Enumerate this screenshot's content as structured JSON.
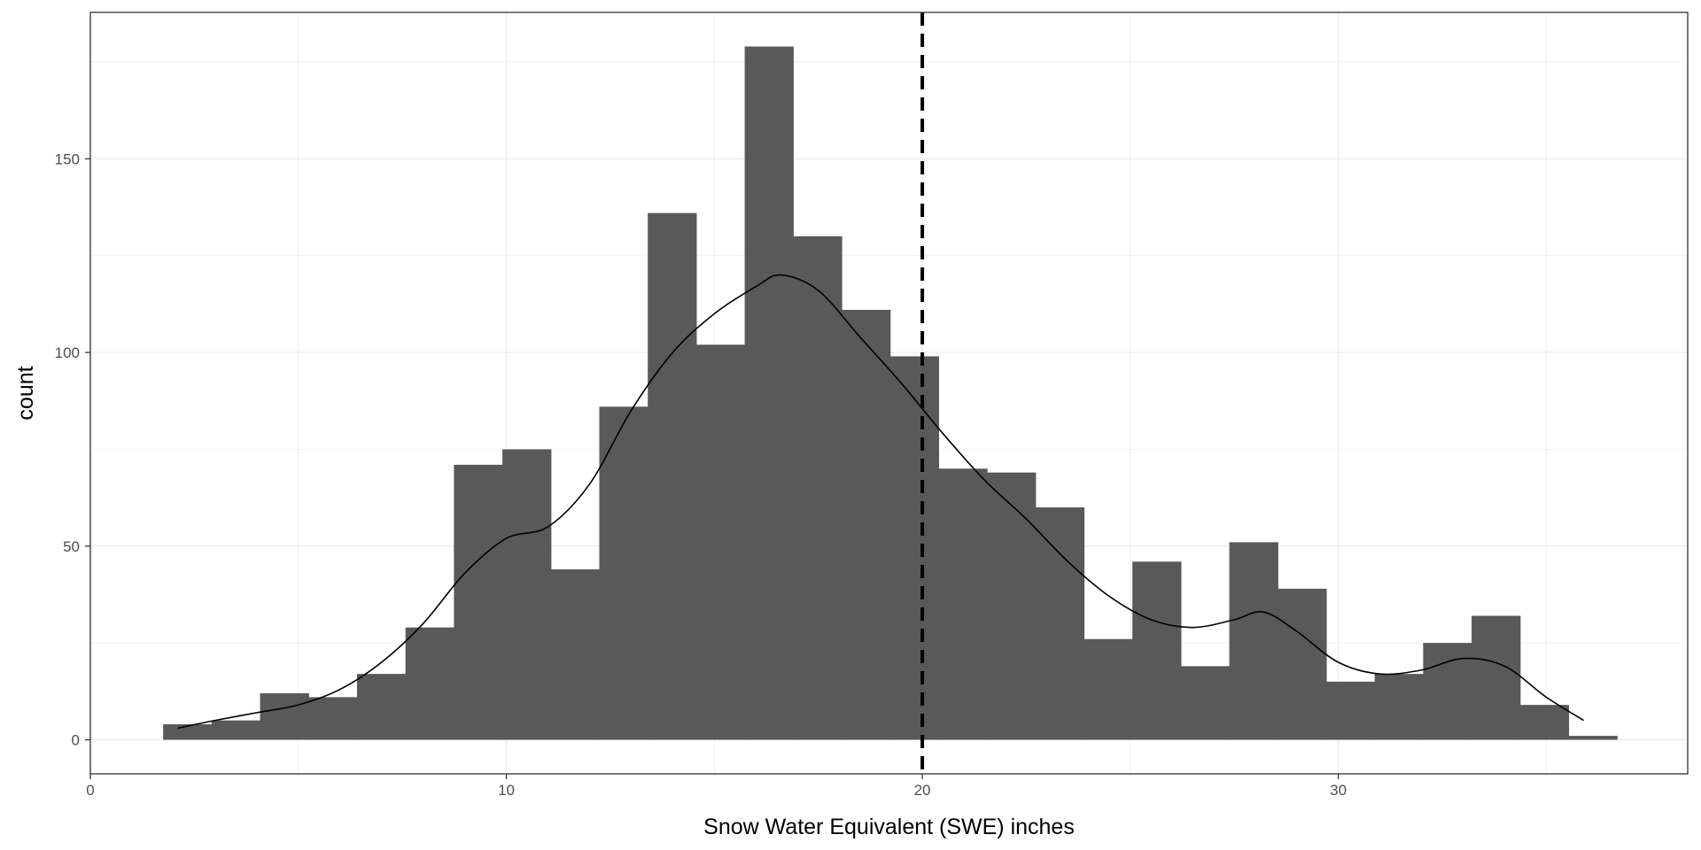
{
  "chart_data": {
    "type": "bar",
    "xlabel": "Snow Water Equivalent (SWE) inches",
    "ylabel": "count",
    "xlim": [
      0,
      38.4
    ],
    "ylim": [
      -8.8,
      187.8
    ],
    "x_ticks": [
      0,
      10,
      20,
      30
    ],
    "x_tick_labels": [
      "0",
      "10",
      "20",
      "30"
    ],
    "y_ticks": [
      0,
      50,
      100,
      150
    ],
    "y_tick_labels": [
      "0",
      "50",
      "100",
      "150"
    ],
    "grid": true,
    "bin_width": 1.165,
    "bins": [
      {
        "x0": 1.75,
        "value": 4
      },
      {
        "x0": 2.915,
        "value": 5
      },
      {
        "x0": 4.08,
        "value": 12
      },
      {
        "x0": 5.245,
        "value": 11
      },
      {
        "x0": 6.41,
        "value": 17
      },
      {
        "x0": 7.575,
        "value": 29
      },
      {
        "x0": 8.74,
        "value": 71
      },
      {
        "x0": 9.905,
        "value": 75
      },
      {
        "x0": 11.07,
        "value": 44
      },
      {
        "x0": 12.235,
        "value": 86
      },
      {
        "x0": 13.4,
        "value": 136
      },
      {
        "x0": 14.565,
        "value": 102
      },
      {
        "x0": 15.73,
        "value": 179
      },
      {
        "x0": 16.895,
        "value": 130
      },
      {
        "x0": 18.06,
        "value": 111
      },
      {
        "x0": 19.225,
        "value": 99
      },
      {
        "x0": 20.39,
        "value": 70
      },
      {
        "x0": 21.555,
        "value": 69
      },
      {
        "x0": 22.72,
        "value": 60
      },
      {
        "x0": 23.885,
        "value": 26
      },
      {
        "x0": 25.05,
        "value": 46
      },
      {
        "x0": 26.215,
        "value": 19
      },
      {
        "x0": 27.38,
        "value": 51
      },
      {
        "x0": 28.545,
        "value": 39
      },
      {
        "x0": 29.71,
        "value": 15
      },
      {
        "x0": 30.875,
        "value": 17
      },
      {
        "x0": 32.04,
        "value": 25
      },
      {
        "x0": 33.205,
        "value": 32
      },
      {
        "x0": 34.37,
        "value": 9
      },
      {
        "x0": 35.535,
        "value": 1
      }
    ],
    "density_curve": {
      "x": [
        2.1,
        3.0,
        4.0,
        5.0,
        6.0,
        7.0,
        8.0,
        9.0,
        10.0,
        11.0,
        12.0,
        13.0,
        14.0,
        15.0,
        16.0,
        16.6,
        17.5,
        18.5,
        19.5,
        20.5,
        21.5,
        22.5,
        23.5,
        24.5,
        25.5,
        26.5,
        27.5,
        28.2,
        29.0,
        30.0,
        31.0,
        32.0,
        33.0,
        34.0,
        35.0,
        35.9
      ],
      "y": [
        3,
        5,
        7,
        9,
        13,
        20,
        30,
        43,
        52,
        55,
        66,
        85,
        100,
        110,
        117,
        120,
        116,
        104,
        92,
        79,
        67,
        57,
        46,
        37,
        31,
        29,
        31,
        33,
        28,
        20,
        17,
        18,
        21,
        19,
        11,
        5
      ]
    },
    "reference_line": {
      "x": 20.0,
      "style": "dashed"
    },
    "colors": {
      "bar_fill": "#595959",
      "curve": "#000000",
      "reference_line": "#000000",
      "grid": "#ebebeb",
      "panel_border": "#333333"
    }
  }
}
